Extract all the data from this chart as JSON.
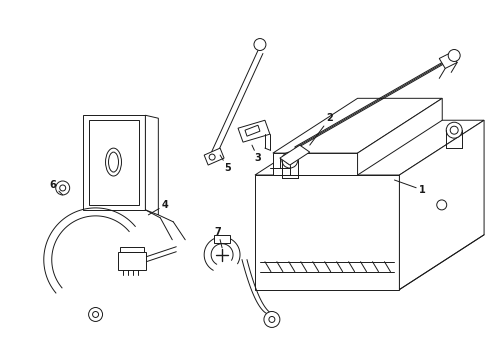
{
  "bg_color": "#ffffff",
  "line_color": "#1a1a1a",
  "line_width": 0.7,
  "figsize": [
    4.9,
    3.6
  ],
  "dpi": 100
}
